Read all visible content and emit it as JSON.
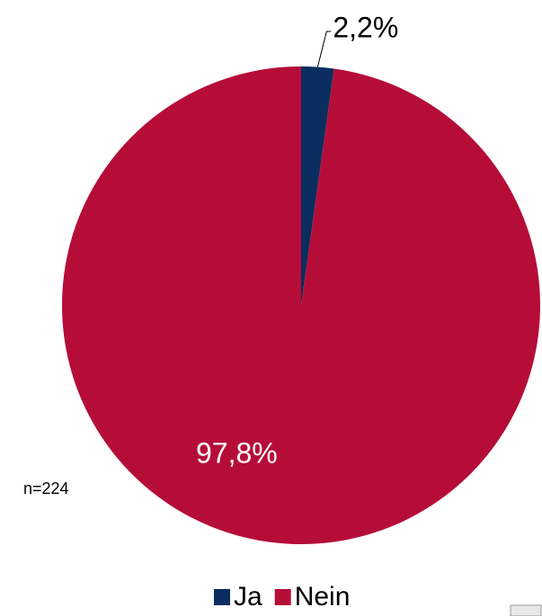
{
  "chart_data": {
    "type": "pie",
    "categories": [
      "Ja",
      "Nein"
    ],
    "values": [
      2.2,
      97.8
    ],
    "value_labels": [
      "2,2%",
      "97,8%"
    ],
    "colors": [
      "#0b2d5f",
      "#b50d38"
    ],
    "annotation": "n=224",
    "legend": "bottom"
  }
}
